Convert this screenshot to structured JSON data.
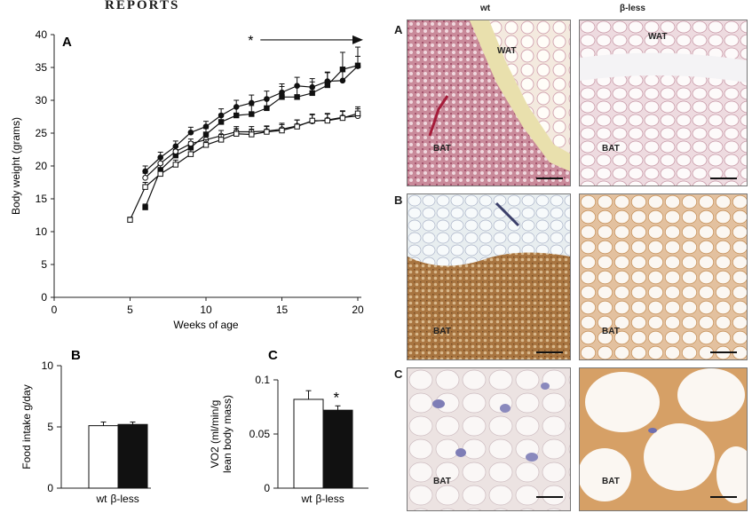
{
  "header": {
    "section_title": "REPORTS"
  },
  "chart_data": [
    {
      "panel": "A",
      "type": "line",
      "xlabel": "Weeks of age",
      "ylabel": "Body weight (grams)",
      "xlim": [
        0,
        20
      ],
      "ylim": [
        0,
        40
      ],
      "xticks": [
        0,
        5,
        10,
        15,
        20
      ],
      "yticks": [
        0,
        5,
        10,
        15,
        20,
        25,
        30,
        35,
        40
      ],
      "significance_marker": "*",
      "significance_from_week": 13,
      "series": [
        {
          "marker": "filled-circle",
          "x": [
            6,
            7,
            8,
            9,
            10,
            11,
            12,
            13,
            14,
            15,
            16,
            17,
            18,
            19,
            20
          ],
          "y": [
            19.2,
            21.3,
            23.0,
            25.1,
            26.0,
            27.7,
            29.0,
            29.6,
            30.2,
            31.2,
            32.2,
            32.0,
            32.9,
            33.0,
            35.2
          ],
          "err": [
            0.8,
            0.8,
            0.8,
            0.8,
            0.8,
            1.0,
            1.0,
            1.2,
            1.2,
            1.3,
            1.3,
            1.3,
            1.3,
            1.5,
            1.5
          ]
        },
        {
          "marker": "filled-square",
          "x": [
            6,
            7,
            8,
            9,
            10,
            11,
            12,
            13,
            14,
            15,
            16,
            17,
            18,
            19,
            20
          ],
          "y": [
            13.7,
            19.4,
            21.6,
            22.8,
            24.8,
            26.7,
            27.7,
            27.9,
            28.8,
            30.5,
            30.5,
            31.1,
            32.3,
            34.7,
            35.3
          ],
          "err": [
            0.5,
            0.8,
            0.9,
            0.9,
            0.9,
            1.2,
            1.2,
            1.3,
            1.3,
            1.6,
            1.6,
            1.7,
            2.0,
            2.6,
            2.8
          ]
        },
        {
          "marker": "open-circle",
          "x": [
            6,
            7,
            8,
            9,
            10,
            11,
            12,
            13,
            14,
            15,
            16,
            17,
            18,
            19,
            20
          ],
          "y": [
            18.2,
            20.4,
            22.2,
            23.4,
            24.0,
            24.6,
            25.2,
            25.2,
            25.3,
            25.6,
            26.1,
            26.8,
            27.0,
            27.4,
            27.6
          ],
          "err": [
            0.7,
            0.7,
            0.7,
            0.7,
            0.7,
            0.8,
            0.8,
            0.8,
            0.8,
            0.9,
            0.9,
            1.0,
            1.0,
            1.0,
            1.1
          ]
        },
        {
          "marker": "open-square",
          "x": [
            5,
            6,
            7,
            8,
            9,
            10,
            11,
            12,
            13,
            14,
            15,
            16,
            17,
            18,
            19,
            20
          ],
          "y": [
            11.8,
            16.8,
            18.8,
            20.2,
            21.8,
            23.2,
            24.0,
            24.9,
            24.8,
            25.2,
            25.4,
            26.0,
            26.9,
            26.9,
            27.3,
            28.0
          ],
          "err": [
            0.4,
            0.7,
            0.7,
            0.7,
            0.8,
            0.8,
            0.8,
            0.8,
            0.8,
            0.8,
            0.9,
            1.0,
            1.0,
            1.0,
            1.0,
            1.0
          ]
        }
      ]
    },
    {
      "panel": "B",
      "type": "bar",
      "ylabel": "Food intake g/day",
      "ylim": [
        0,
        10
      ],
      "yticks": [
        0,
        5,
        10
      ],
      "categories": [
        "wt",
        "β-less"
      ],
      "values": [
        5.1,
        5.2
      ],
      "err": [
        0.3,
        0.2
      ],
      "colors": [
        "#ffffff",
        "#111111"
      ]
    },
    {
      "panel": "C",
      "type": "bar",
      "ylabel_line1": "VO2 (ml/min/g",
      "ylabel_line2": "lean body mass)",
      "ylim": [
        0,
        0.1
      ],
      "yticks": [
        0,
        0.05,
        0.1
      ],
      "ytick_labels": [
        "0",
        "0.05",
        "0.1"
      ],
      "categories": [
        "wt",
        "β-less"
      ],
      "values": [
        0.082,
        0.072
      ],
      "err": [
        0.008,
        0.004
      ],
      "significance_marker": "*",
      "colors": [
        "#ffffff",
        "#111111"
      ]
    }
  ],
  "micrographs": {
    "column_labels": [
      "wt",
      "β-less"
    ],
    "rows": [
      {
        "label": "A",
        "wt_labels": [
          "WAT",
          "BAT"
        ],
        "bless_labels": [
          "WAT",
          "BAT"
        ]
      },
      {
        "label": "B",
        "wt_labels": [
          "BAT"
        ],
        "bless_labels": [
          "BAT"
        ]
      },
      {
        "label": "C",
        "wt_labels": [
          "BAT"
        ],
        "bless_labels": [
          "BAT"
        ]
      }
    ]
  }
}
